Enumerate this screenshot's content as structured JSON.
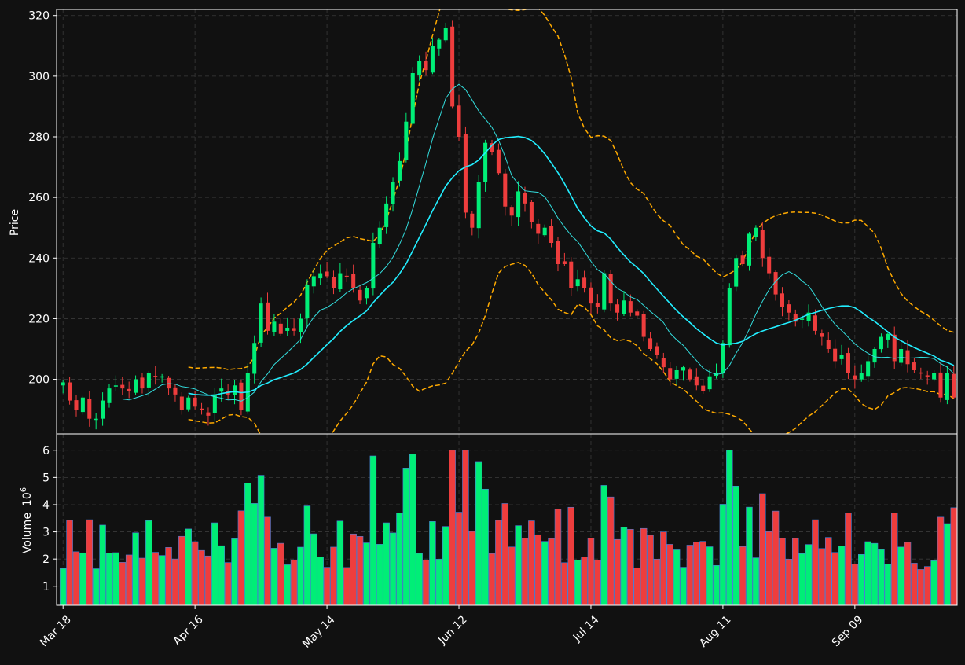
{
  "chart_data": {
    "type": "candlestick",
    "title": "",
    "price_axis": {
      "label": "Price",
      "ylim": [
        182,
        322
      ],
      "ticks": [
        200,
        220,
        240,
        260,
        280,
        300,
        320
      ]
    },
    "volume_axis": {
      "label": "Volume",
      "exponent_label": "10",
      "exponent": "6",
      "ylim": [
        0.3,
        6.6
      ],
      "ticks": [
        1,
        2,
        3,
        4,
        5,
        6
      ]
    },
    "x_ticks": [
      "Mar 18",
      "Apr 16",
      "May 14",
      "Jun 12",
      "Jul 14",
      "Aug 11",
      "Sep 09"
    ],
    "grid": true,
    "colors": {
      "background": "#111111",
      "up": "#00ee77",
      "down": "#ee3d3d",
      "volume_edge": "#4a7fd8",
      "ma_fast": "#33dddd",
      "ma_slow": "#22eeff",
      "bands": "#ffaa00",
      "grid": "#3a3a3a",
      "axes": "#ffffff"
    },
    "overlays": [
      "moving-average-fast",
      "moving-average-slow",
      "bollinger-upper",
      "bollinger-lower"
    ],
    "close": [
      199,
      193,
      190,
      194,
      187,
      187,
      193,
      197,
      198,
      197,
      196,
      200,
      197,
      202,
      201,
      201,
      197,
      195,
      190,
      194,
      191,
      190,
      188,
      195,
      197,
      195,
      198,
      190,
      202,
      212,
      225,
      216,
      219,
      215,
      217,
      216,
      220,
      231,
      234,
      235,
      234,
      230,
      235,
      234,
      230,
      226,
      230,
      245,
      250,
      258,
      265,
      272,
      285,
      301,
      305,
      302,
      310,
      312,
      316,
      290,
      280,
      255,
      250,
      265,
      278,
      275,
      268,
      257,
      254,
      262,
      258,
      252,
      248,
      250,
      245,
      238,
      238,
      230,
      233,
      230,
      225,
      224,
      235,
      225,
      222,
      226,
      222,
      221,
      214,
      210,
      208,
      204,
      200,
      203,
      204,
      200,
      198,
      196,
      201,
      202,
      212,
      230,
      240,
      238,
      248,
      250,
      240,
      235,
      228,
      224,
      222,
      219,
      220,
      222,
      216,
      214,
      210,
      206,
      208,
      202,
      200,
      202,
      206,
      210,
      214,
      215,
      206,
      210,
      205,
      203,
      202,
      201,
      202,
      194,
      202,
      194
    ]
  }
}
